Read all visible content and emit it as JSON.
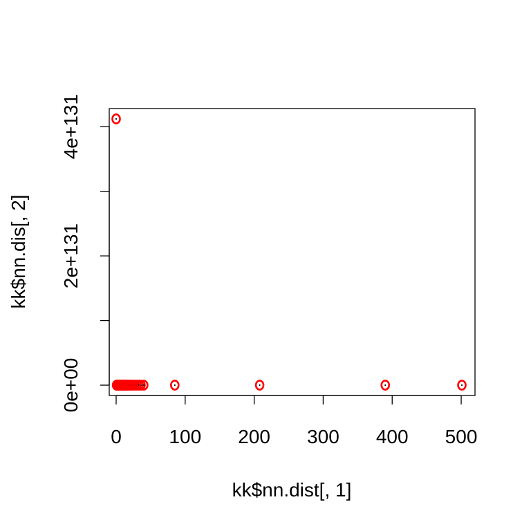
{
  "chart_data": {
    "type": "scatter",
    "title": "",
    "xlabel": "kk$nn.dist[, 1]",
    "ylabel": "kk$nn.dis[, 2]",
    "xlim": [
      -10,
      520
    ],
    "ylim": [
      -1.6e+130,
      4.28e+131
    ],
    "x_ticks": [
      0,
      100,
      200,
      300,
      400,
      500
    ],
    "x_tick_labels": [
      "0",
      "100",
      "200",
      "300",
      "400",
      "500"
    ],
    "y_ticks": [
      0,
      1e+131,
      2e+131,
      3e+131,
      4e+131
    ],
    "y_tick_labels": [
      "0e+00",
      "",
      "2e+131",
      "",
      "4e+131"
    ],
    "grid": false,
    "legend": "none",
    "marker": "o",
    "marker_color": "#ff0000",
    "series": [
      {
        "x": [
          0,
          0.6,
          1.2,
          1.8,
          2.4,
          3,
          4,
          5,
          6,
          7,
          8,
          9,
          10,
          11,
          12,
          13,
          14,
          15,
          16,
          18,
          20,
          22,
          24,
          27,
          30,
          33,
          36,
          40,
          85,
          208,
          390,
          501
        ],
        "y": [
          4.12e+131,
          0,
          0,
          0,
          0,
          0,
          0,
          0,
          0,
          0,
          0,
          0,
          0,
          0,
          0,
          0,
          0,
          0,
          0,
          0,
          0,
          0,
          0,
          0,
          0,
          0,
          0,
          0,
          0,
          0,
          0,
          0
        ]
      }
    ]
  }
}
